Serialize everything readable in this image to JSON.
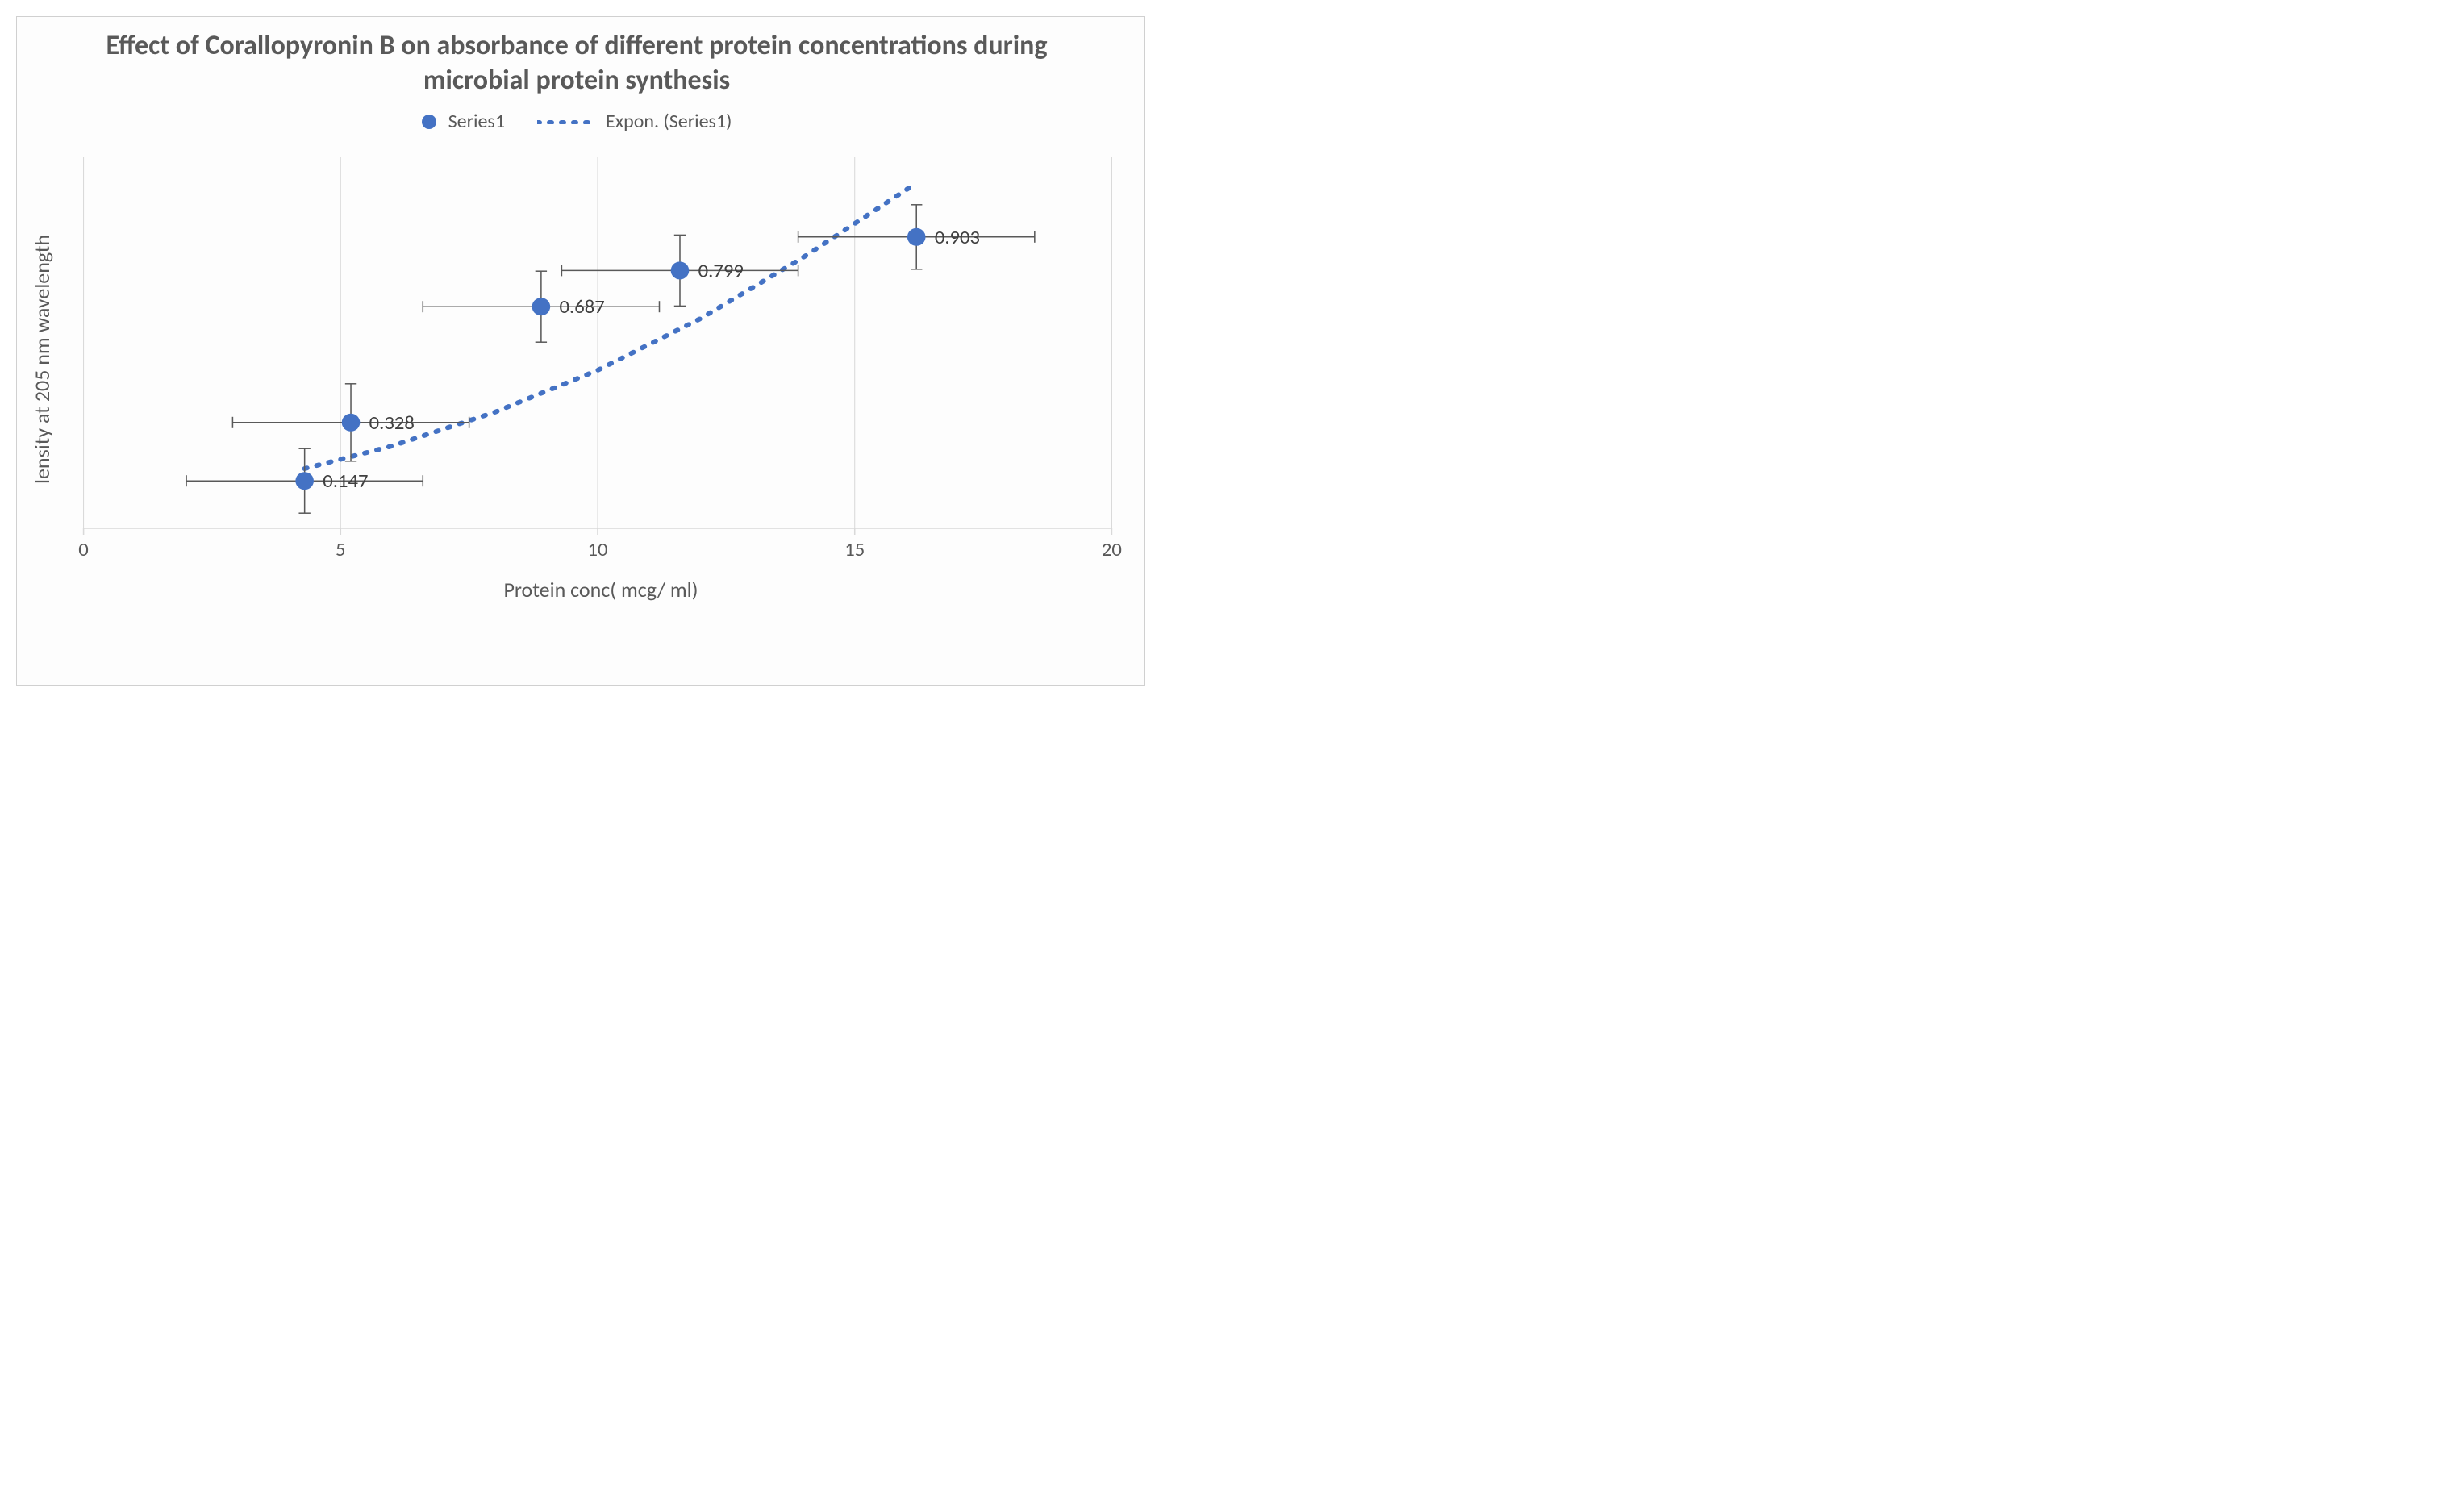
{
  "chart": {
    "type": "scatter-with-trendline",
    "title": "Effect of Corallopyronin B on absorbance of different  protein concentrations during microbial protein synthesis",
    "title_fontsize": 34,
    "title_color": "#595959",
    "background_color": "#fdfdfd",
    "border_color": "#d0d0d0",
    "xlabel": "Protein conc( mcg/ ml)",
    "ylabel": "lensity at 205 nm wavelength",
    "axis_label_fontsize": 26,
    "axis_label_color": "#595959",
    "tick_fontsize": 24,
    "tick_color": "#595959",
    "xlim": [
      0,
      20
    ],
    "x_ticks": [
      0,
      5,
      10,
      15,
      20
    ],
    "ylim": [
      0,
      1.15
    ],
    "grid_color": "#d9d9d9",
    "grid_width": 1,
    "axis_color": "#d9d9d9",
    "series": {
      "name": "Series1",
      "marker_color": "#4472c4",
      "marker_radius": 11,
      "data_label_color": "#404040",
      "data_label_fontsize": 24,
      "errorbar_color": "#595959",
      "errorbar_width": 1.5,
      "errorbar_cap": 7,
      "points": [
        {
          "x": 4.3,
          "y": 0.147,
          "label": "0.147",
          "x_err": 2.3,
          "y_err": 0.1
        },
        {
          "x": 5.2,
          "y": 0.328,
          "label": "0.328",
          "x_err": 2.3,
          "y_err": 0.12
        },
        {
          "x": 8.9,
          "y": 0.687,
          "label": "0.687",
          "x_err": 2.3,
          "y_err": 0.11
        },
        {
          "x": 11.6,
          "y": 0.799,
          "label": "0.799",
          "x_err": 2.3,
          "y_err": 0.11
        },
        {
          "x": 16.2,
          "y": 0.903,
          "label": "0.903",
          "x_err": 2.3,
          "y_err": 0.1
        }
      ]
    },
    "trendline": {
      "name": "Expon. (Series1)",
      "color": "#4472c4",
      "dash": "3,12",
      "width": 6,
      "points": [
        {
          "x": 4.3,
          "y": 0.185
        },
        {
          "x": 6.0,
          "y": 0.255
        },
        {
          "x": 8.0,
          "y": 0.36
        },
        {
          "x": 10.0,
          "y": 0.49
        },
        {
          "x": 12.0,
          "y": 0.65
        },
        {
          "x": 14.0,
          "y": 0.84
        },
        {
          "x": 16.2,
          "y": 1.07
        }
      ]
    },
    "legend": {
      "fontsize": 24,
      "text_color": "#595959",
      "items": [
        {
          "kind": "dot",
          "label": "Series1"
        },
        {
          "kind": "dots-line",
          "label": "Expon. (Series1)"
        }
      ]
    }
  }
}
